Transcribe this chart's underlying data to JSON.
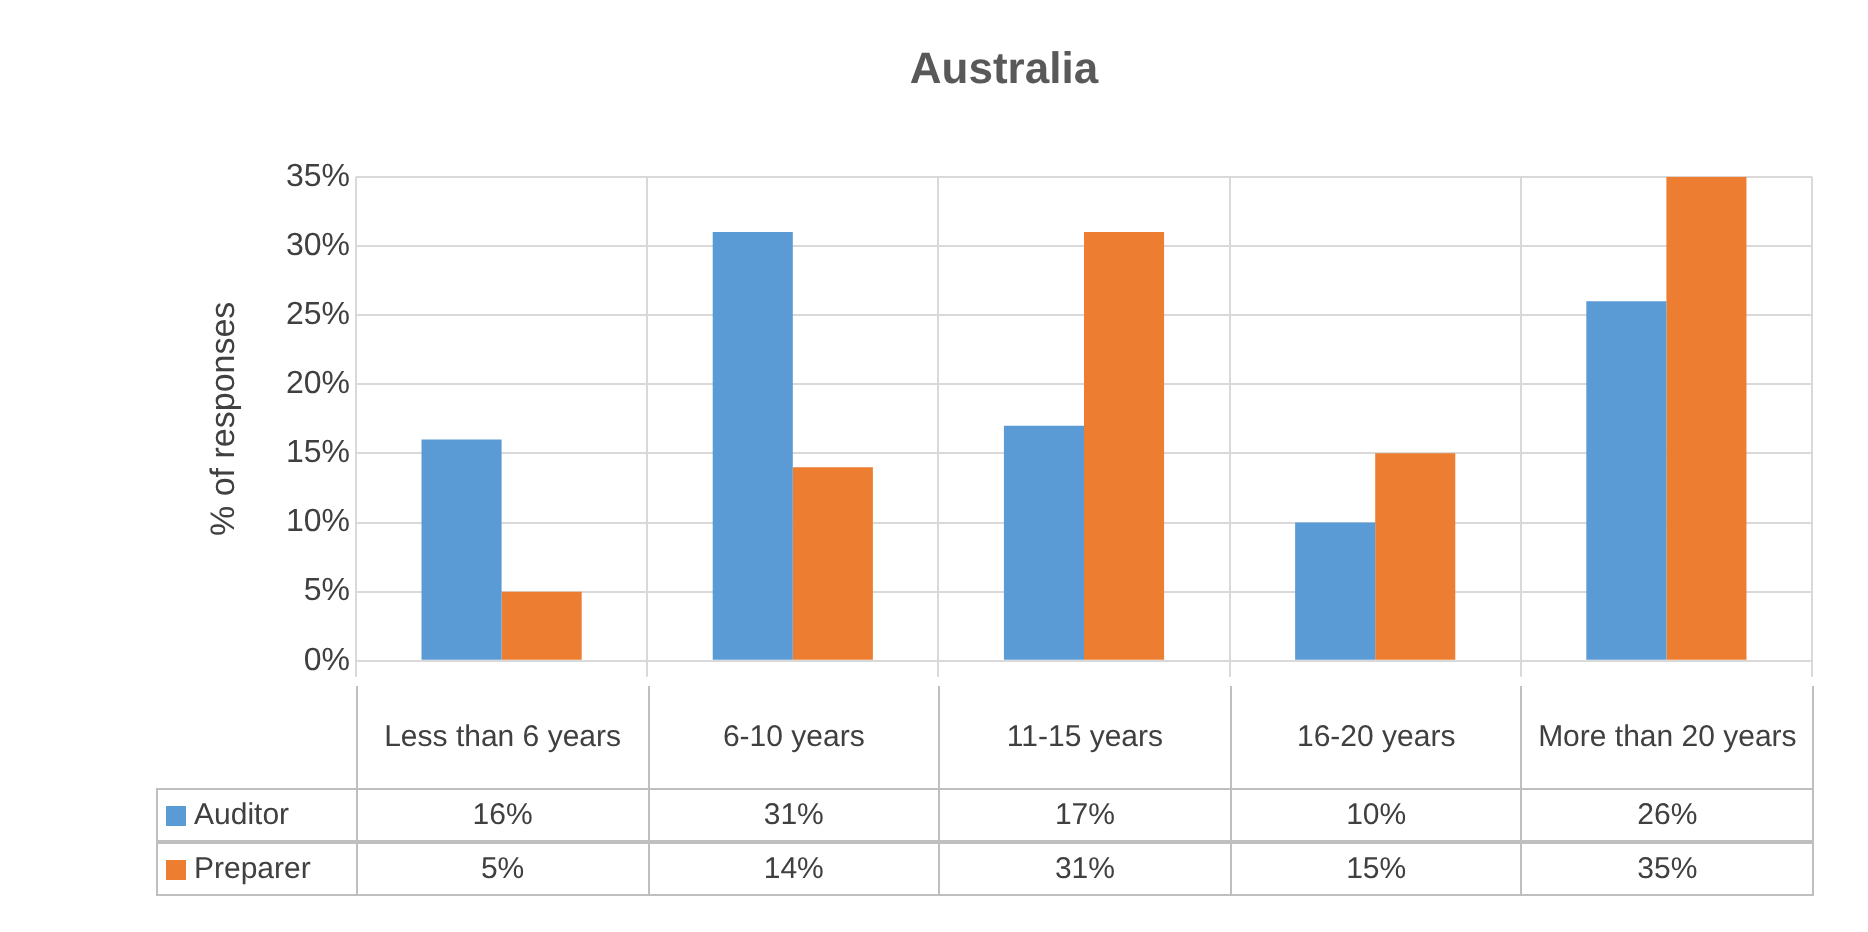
{
  "chart_data": {
    "type": "bar",
    "title": "Australia",
    "ylabel": "% of responses",
    "categories": [
      "Less than 6 years",
      "6-10 years",
      "11-15 years",
      "16-20 years",
      "More than 20 years"
    ],
    "series": [
      {
        "name": "Auditor",
        "color": "#5b9bd5",
        "values": [
          16,
          31,
          17,
          10,
          26
        ],
        "value_labels": [
          "16%",
          "31%",
          "17%",
          "10%",
          "26%"
        ]
      },
      {
        "name": "Preparer",
        "color": "#ed7d31",
        "values": [
          5,
          14,
          31,
          15,
          35
        ],
        "value_labels": [
          "5%",
          "14%",
          "31%",
          "15%",
          "35%"
        ]
      }
    ],
    "ylim": [
      0,
      35
    ],
    "yticks": [
      {
        "value": 0,
        "label": "0%"
      },
      {
        "value": 5,
        "label": "5%"
      },
      {
        "value": 10,
        "label": "10%"
      },
      {
        "value": 15,
        "label": "15%"
      },
      {
        "value": 20,
        "label": "20%"
      },
      {
        "value": 25,
        "label": "25%"
      },
      {
        "value": 30,
        "label": "30%"
      },
      {
        "value": 35,
        "label": "35%"
      }
    ],
    "grid": true,
    "legend": "bottom"
  }
}
